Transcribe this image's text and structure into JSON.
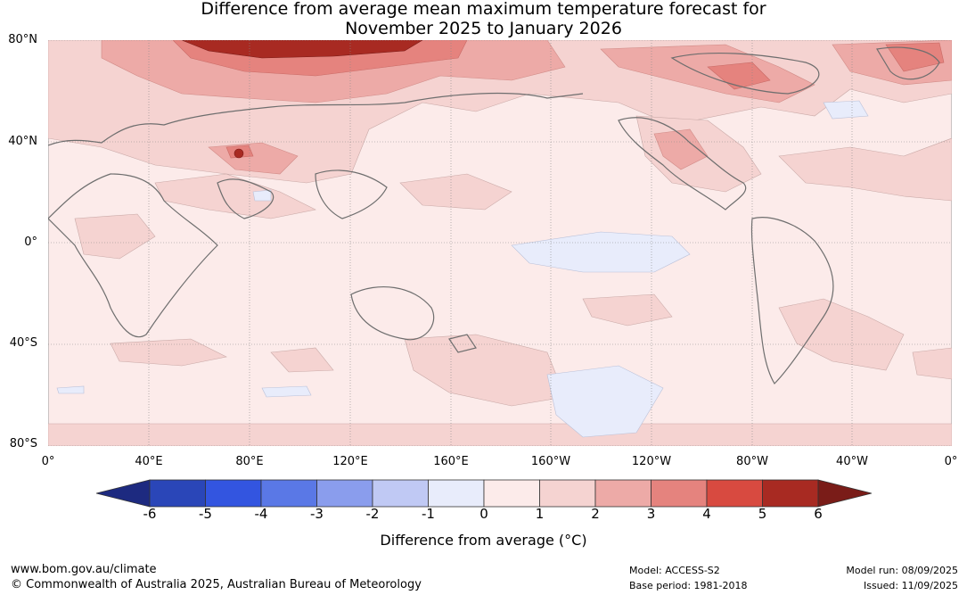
{
  "title_line1": "Difference from average mean maximum temperature forecast for",
  "title_line2": "November 2025 to January 2026",
  "lat_labels": [
    "80°N",
    "40°N",
    "0°",
    "40°S",
    "80°S"
  ],
  "lon_labels": [
    "0°",
    "40°E",
    "80°E",
    "120°E",
    "160°E",
    "160°W",
    "120°W",
    "80°W",
    "40°W",
    "0°"
  ],
  "colorbar": {
    "ticks": [
      "-6",
      "-5",
      "-4",
      "-3",
      "-2",
      "-1",
      "0",
      "1",
      "2",
      "3",
      "4",
      "5",
      "6"
    ],
    "colors": [
      "#1d2a80",
      "#2a46b8",
      "#3355e0",
      "#5a78e6",
      "#8a9ded",
      "#c0c9f4",
      "#e8ecfb",
      "#fcebea",
      "#f5d3d1",
      "#edaaa7",
      "#e5837e",
      "#d84a40",
      "#a82a22",
      "#7a1c18"
    ],
    "label": "Difference from average (°C)"
  },
  "footer": {
    "website": "www.bom.gov.au/climate",
    "copyright": "© Commonwealth of Australia 2025, Australian Bureau of Meteorology",
    "model": "Model: ACCESS-S2",
    "base_period": "Base period: 1981-2018",
    "model_run": "Model run: 08/09/2025",
    "issued": "Issued: 11/09/2025"
  }
}
